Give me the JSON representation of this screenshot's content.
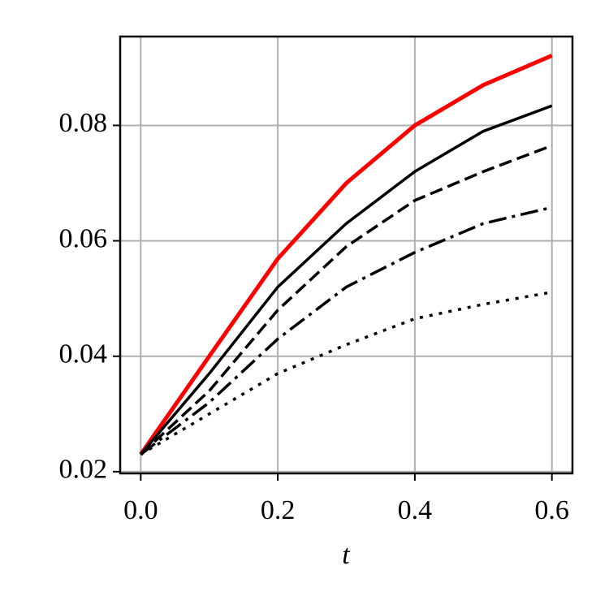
{
  "chart_data": {
    "type": "line",
    "xlabel": "t",
    "x": [
      0,
      0.1,
      0.2,
      0.3,
      0.4,
      0.5,
      0.6
    ],
    "series": [
      {
        "color": "#ff0000",
        "dash": "solid",
        "width": 5,
        "values": [
          0.023,
          0.04,
          0.0569,
          0.07,
          0.08,
          0.087,
          0.0921
        ]
      },
      {
        "color": "#000000",
        "dash": "solid",
        "width": 3.5,
        "values": [
          0.023,
          0.037,
          0.052,
          0.063,
          0.072,
          0.079,
          0.0834
        ]
      },
      {
        "color": "#000000",
        "dash": "dashed",
        "width": 3.5,
        "values": [
          0.023,
          0.034,
          0.048,
          0.059,
          0.067,
          0.072,
          0.0765
        ]
      },
      {
        "color": "#000000",
        "dash": "dashdot",
        "width": 3.5,
        "values": [
          0.023,
          0.032,
          0.043,
          0.052,
          0.058,
          0.063,
          0.0658
        ]
      },
      {
        "color": "#000000",
        "dash": "dotted",
        "width": 3.5,
        "values": [
          0.023,
          0.03,
          0.037,
          0.042,
          0.0465,
          0.049,
          0.0511
        ]
      }
    ],
    "xlim": [
      -0.03,
      0.63
    ],
    "ylim": [
      0.0197,
      0.0954
    ],
    "xticks": [
      {
        "value": 0,
        "label": "0.0"
      },
      0.2,
      0.4,
      0.6
    ],
    "yticks": [
      0.02,
      0.04,
      0.06,
      0.08
    ],
    "grid": true
  }
}
